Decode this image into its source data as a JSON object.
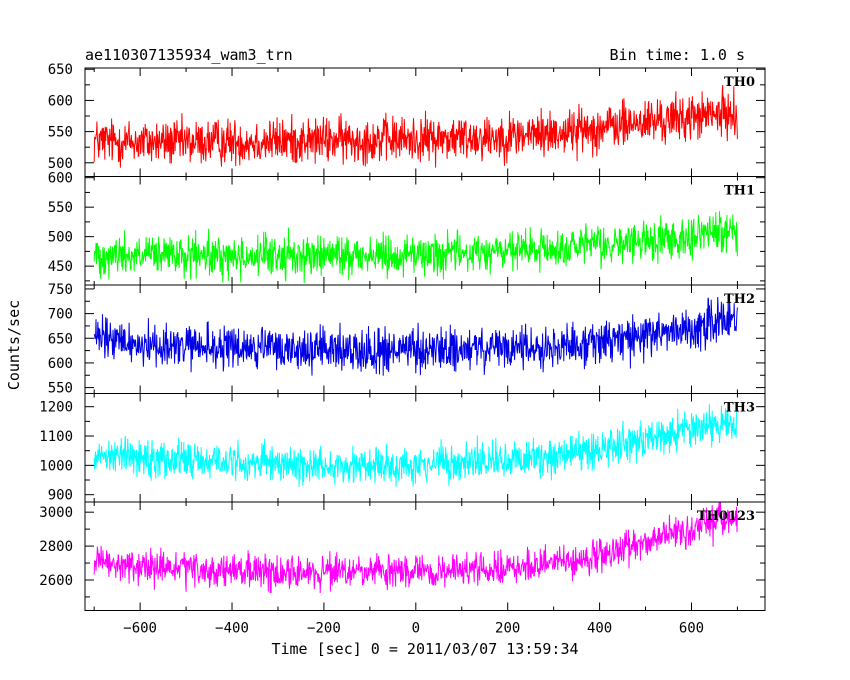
{
  "header": {
    "title": "ae110307135934_wam3_trn",
    "bin_time": "Bin time: 1.0 s"
  },
  "chart_data": [
    {
      "type": "line",
      "name": "TH0",
      "color": "#ff0000",
      "xlim": [
        -720,
        760
      ],
      "ylim": [
        478,
        652
      ],
      "yticks": [
        500,
        550,
        600,
        650
      ],
      "ytick_labels": [
        "500",
        "550",
        "600",
        "650"
      ],
      "x": [
        -700,
        -600,
        -500,
        -400,
        -300,
        -200,
        -100,
        0,
        100,
        200,
        300,
        400,
        500,
        600,
        700
      ],
      "values": [
        535,
        533,
        532,
        534,
        535,
        536,
        537,
        538,
        540,
        543,
        548,
        556,
        565,
        573,
        580
      ],
      "noise": 32
    },
    {
      "type": "line",
      "name": "TH1",
      "color": "#00ff00",
      "xlim": [
        -720,
        760
      ],
      "ylim": [
        418,
        602
      ],
      "yticks": [
        450,
        500,
        550,
        600
      ],
      "ytick_labels": [
        "450",
        "500",
        "550",
        "600"
      ],
      "x": [
        -700,
        -600,
        -500,
        -400,
        -300,
        -200,
        -100,
        0,
        100,
        200,
        300,
        400,
        500,
        600,
        700
      ],
      "values": [
        470,
        468,
        466,
        466,
        467,
        468,
        469,
        470,
        472,
        475,
        478,
        484,
        492,
        502,
        512
      ],
      "noise": 30
    },
    {
      "type": "line",
      "name": "TH2",
      "color": "#0000e6",
      "xlim": [
        -720,
        760
      ],
      "ylim": [
        538,
        758
      ],
      "yticks": [
        550,
        600,
        650,
        700,
        750
      ],
      "ytick_labels": [
        "550",
        "600",
        "650",
        "700",
        "750"
      ],
      "x": [
        -700,
        -600,
        -500,
        -400,
        -300,
        -200,
        -100,
        0,
        100,
        200,
        300,
        400,
        500,
        600,
        700
      ],
      "values": [
        650,
        638,
        632,
        630,
        628,
        626,
        625,
        625,
        626,
        628,
        633,
        642,
        655,
        672,
        690
      ],
      "noise": 38
    },
    {
      "type": "line",
      "name": "TH3",
      "color": "#00ffff",
      "xlim": [
        -720,
        760
      ],
      "ylim": [
        875,
        1245
      ],
      "yticks": [
        900,
        1000,
        1100,
        1200
      ],
      "ytick_labels": [
        "900",
        "1000",
        "1100",
        "1200"
      ],
      "x": [
        -700,
        -600,
        -500,
        -400,
        -300,
        -200,
        -100,
        0,
        100,
        200,
        300,
        400,
        500,
        600,
        700
      ],
      "values": [
        1040,
        1030,
        1020,
        1010,
        1005,
        1000,
        1000,
        1002,
        1008,
        1018,
        1035,
        1060,
        1090,
        1125,
        1160
      ],
      "noise": 55
    },
    {
      "type": "line",
      "name": "TH0123",
      "color": "#ff00ff",
      "xlim": [
        -720,
        760
      ],
      "ylim": [
        2420,
        3060
      ],
      "yticks": [
        2600,
        2800,
        3000
      ],
      "ytick_labels": [
        "2600",
        "2800",
        "3000"
      ],
      "x": [
        -700,
        -600,
        -500,
        -400,
        -300,
        -200,
        -100,
        0,
        100,
        200,
        300,
        400,
        500,
        600,
        700
      ],
      "values": [
        2700,
        2675,
        2660,
        2650,
        2645,
        2645,
        2645,
        2648,
        2655,
        2665,
        2690,
        2740,
        2820,
        2900,
        2970
      ],
      "noise": 85
    }
  ],
  "xaxis": {
    "ticks": [
      -600,
      -400,
      -200,
      0,
      200,
      400,
      600
    ],
    "tick_labels": [
      "−600",
      "−400",
      "−200",
      "0",
      "200",
      "400",
      "600"
    ],
    "label": "Time [sec] 0 = 2011/03/07 13:59:34"
  },
  "yaxis": {
    "label": "Counts/sec"
  }
}
